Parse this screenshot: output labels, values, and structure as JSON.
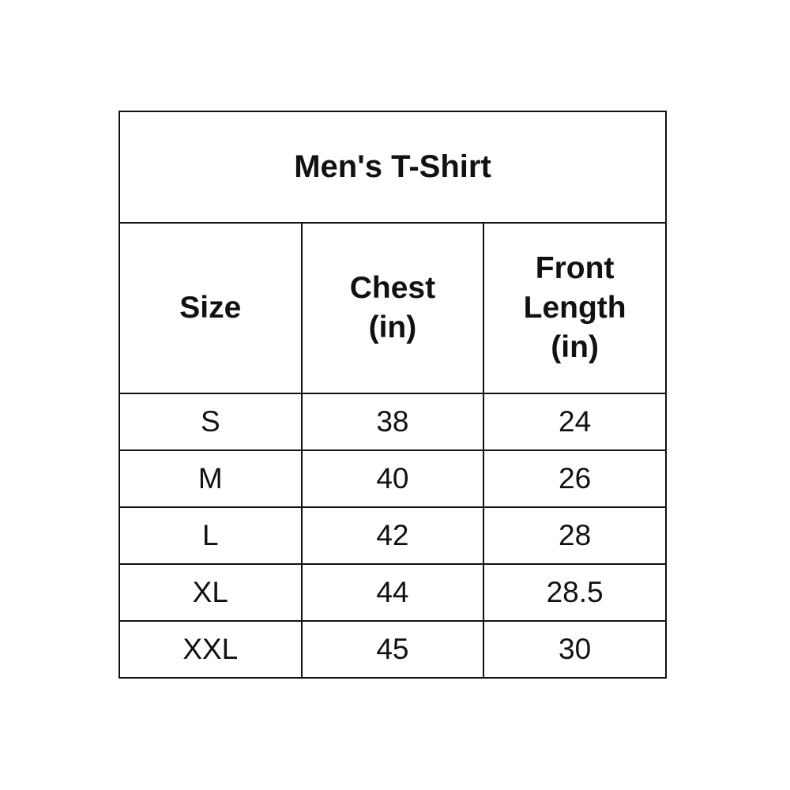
{
  "title": "Men's T-Shirt",
  "headers": [
    {
      "lines": [
        "Size"
      ]
    },
    {
      "lines": [
        "Chest",
        "(in)"
      ]
    },
    {
      "lines": [
        "Front",
        "Length",
        "(in)"
      ]
    }
  ],
  "rows": [
    [
      "S",
      "38",
      "24"
    ],
    [
      "M",
      "40",
      "26"
    ],
    [
      "L",
      "42",
      "28"
    ],
    [
      "XL",
      "44",
      "28.5"
    ],
    [
      "XXL",
      "45",
      "30"
    ]
  ]
}
